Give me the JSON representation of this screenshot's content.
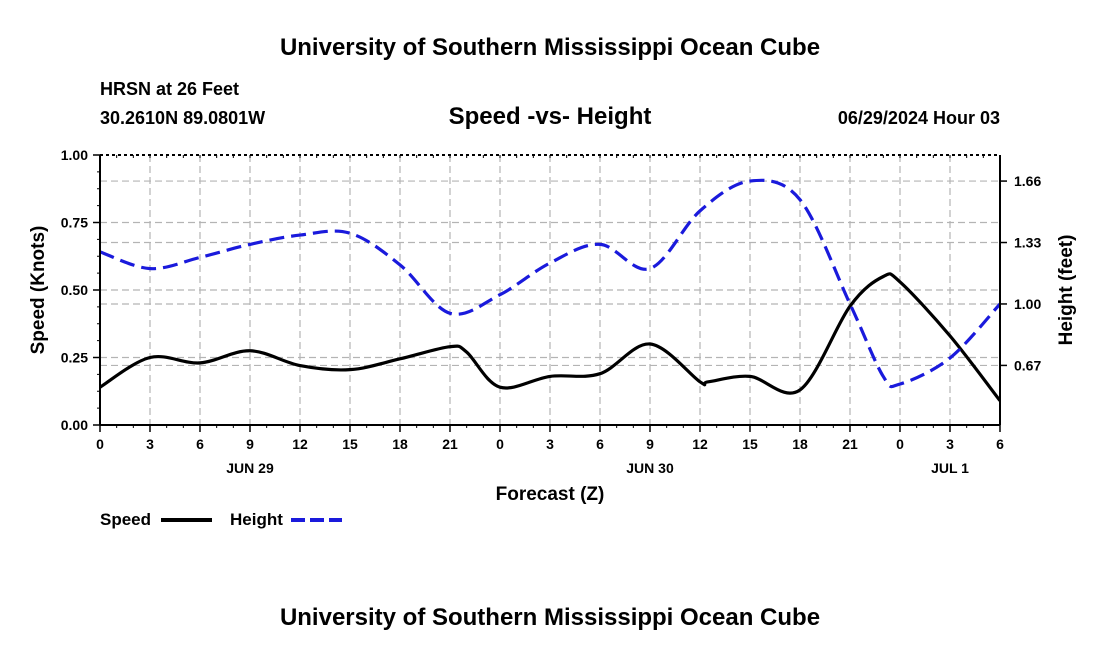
{
  "header": {
    "title": "University of Southern Mississippi Ocean Cube",
    "station": "HRSN at 26 Feet",
    "coords": "30.2610N  89.0801W",
    "datetime": "06/29/2024 Hour 03",
    "footer_title": "University of Southern Mississippi Ocean Cube"
  },
  "chart_data": {
    "type": "line",
    "title": "Speed -vs- Height",
    "xlabel": "Forecast (Z)",
    "ylabel": "Speed (Knots)",
    "y2label": "Height (feet)",
    "x_ticks": [
      "0",
      "3",
      "6",
      "9",
      "12",
      "15",
      "18",
      "21",
      "0",
      "3",
      "6",
      "9",
      "12",
      "15",
      "18",
      "21",
      "0",
      "3",
      "6"
    ],
    "date_labels": [
      {
        "label": "JUN 29",
        "hour": 9
      },
      {
        "label": "JUN 30",
        "hour": 33
      },
      {
        "label": "JUL 1",
        "hour": 51
      }
    ],
    "xlim": [
      0,
      54
    ],
    "ylim": [
      0,
      1
    ],
    "y_ticks": [
      "0.00",
      "0.25",
      "0.50",
      "0.75",
      "1.00"
    ],
    "y_tick_values": [
      0,
      0.25,
      0.5,
      0.75,
      1.0
    ],
    "y2lim": [
      0.35,
      1.8
    ],
    "y2_ticks": [
      "0.67",
      "1.00",
      "1.33",
      "1.66"
    ],
    "y2_tick_values": [
      0.67,
      1.0,
      1.33,
      1.66
    ],
    "grid": true,
    "legend": "bottom-left",
    "series": [
      {
        "name": "Speed",
        "axis": "left",
        "color": "#000000",
        "style": "solid",
        "x": [
          0,
          3,
          6,
          9,
          12,
          15,
          18,
          21,
          22,
          24,
          27,
          30,
          33,
          36,
          36.5,
          39,
          42,
          45,
          47,
          48,
          51,
          54
        ],
        "values": [
          0.14,
          0.25,
          0.23,
          0.275,
          0.22,
          0.205,
          0.245,
          0.29,
          0.27,
          0.14,
          0.18,
          0.19,
          0.3,
          0.16,
          0.16,
          0.18,
          0.13,
          0.44,
          0.55,
          0.53,
          0.33,
          0.09
        ]
      },
      {
        "name": "Height",
        "axis": "right",
        "color": "#1a1adc",
        "style": "dashed",
        "x": [
          0,
          3,
          6,
          9,
          12,
          15,
          18,
          21,
          24,
          27,
          30,
          33,
          36,
          39,
          42,
          45,
          47,
          48,
          51,
          54
        ],
        "values": [
          1.28,
          1.19,
          1.25,
          1.32,
          1.37,
          1.38,
          1.21,
          0.95,
          1.05,
          1.22,
          1.32,
          1.19,
          1.5,
          1.66,
          1.56,
          1.0,
          0.61,
          0.57,
          0.71,
          1.0
        ]
      }
    ]
  }
}
